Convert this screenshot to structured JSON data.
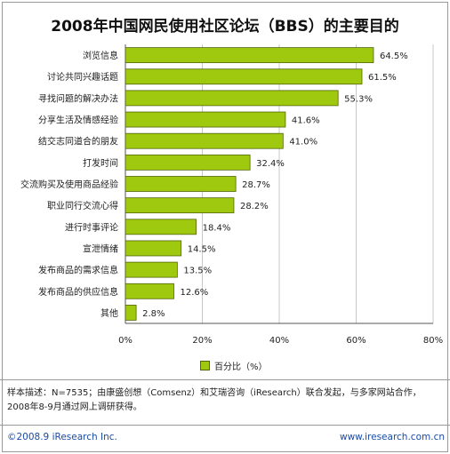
{
  "title": "2008年中国网民使用社区论坛（BBS）的主要目的",
  "chart_data": {
    "type": "bar",
    "orientation": "horizontal",
    "title": "2008年中国网民使用社区论坛（BBS）的主要目的",
    "categories": [
      "浏览信息",
      "讨论共同兴趣话题",
      "寻找问题的解决办法",
      "分享生活及情感经验",
      "结交志同道合的朋友",
      "打发时间",
      "交流购买及使用商品经验",
      "职业同行交流心得",
      "进行时事评论",
      "宣泄情绪",
      "发布商品的需求信息",
      "发布商品的供应信息",
      "其他"
    ],
    "series": [
      {
        "name": "百分比（%）",
        "values": [
          64.5,
          61.5,
          55.3,
          41.6,
          41.0,
          32.4,
          28.7,
          28.2,
          18.4,
          14.5,
          13.5,
          12.6,
          2.8
        ]
      }
    ],
    "value_labels": [
      "64.5%",
      "61.5%",
      "55.3%",
      "41.6%",
      "41.0%",
      "32.4%",
      "28.7%",
      "28.2%",
      "18.4%",
      "14.5%",
      "13.5%",
      "12.6%",
      "2.8%"
    ],
    "xlim": [
      0,
      80
    ],
    "xticks": [
      "0%",
      "20%",
      "40%",
      "60%",
      "80%"
    ],
    "grid": true,
    "legend": "bottom",
    "bar_color": "#9ec90f"
  },
  "legend_label": "百分比（%）",
  "note": "样本描述：N=7535；由康盛创想（Comsenz）和艾瑞咨询（iResearch）联合发起，与多家网站合作，2008年8-9月通过网上调研获得。",
  "footer": {
    "copyright": "©2008.9 iResearch Inc.",
    "website": "www.iresearch.com.cn"
  }
}
